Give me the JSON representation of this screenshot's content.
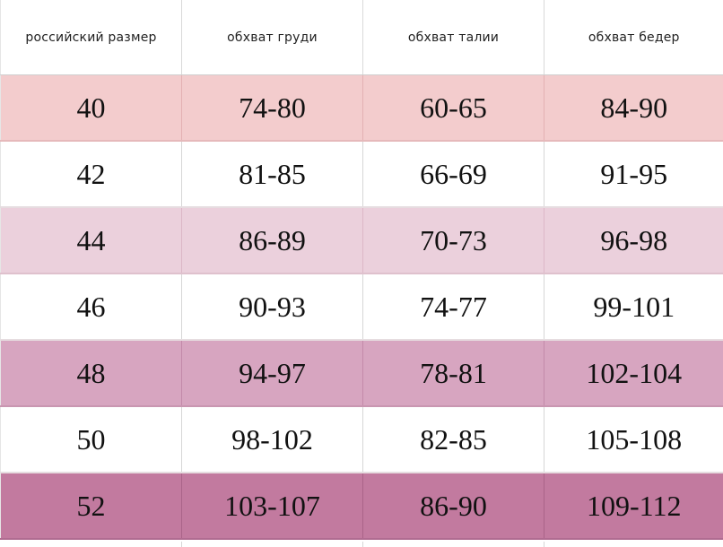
{
  "table": {
    "headers": [
      "российский размер",
      "обхват груди",
      "обхват талии",
      "обхват бедер"
    ],
    "rows": [
      {
        "size": "40",
        "chest": "74-80",
        "waist": "60-65",
        "hips": "84-90"
      },
      {
        "size": "42",
        "chest": "81-85",
        "waist": "66-69",
        "hips": "91-95"
      },
      {
        "size": "44",
        "chest": "86-89",
        "waist": "70-73",
        "hips": "96-98"
      },
      {
        "size": "46",
        "chest": "90-93",
        "waist": "74-77",
        "hips": "99-101"
      },
      {
        "size": "48",
        "chest": "94-97",
        "waist": "78-81",
        "hips": "102-104"
      },
      {
        "size": "50",
        "chest": "98-102",
        "waist": "82-85",
        "hips": "105-108"
      },
      {
        "size": "52",
        "chest": "103-107",
        "waist": "86-90",
        "hips": "109-112"
      }
    ]
  },
  "colors": {
    "row_pink_1": "#f3cccd",
    "row_pink_2": "#ebd0dc",
    "row_pink_3": "#d7a5c0",
    "row_pink_4": "#c27a9f",
    "row_white": "#ffffff"
  }
}
